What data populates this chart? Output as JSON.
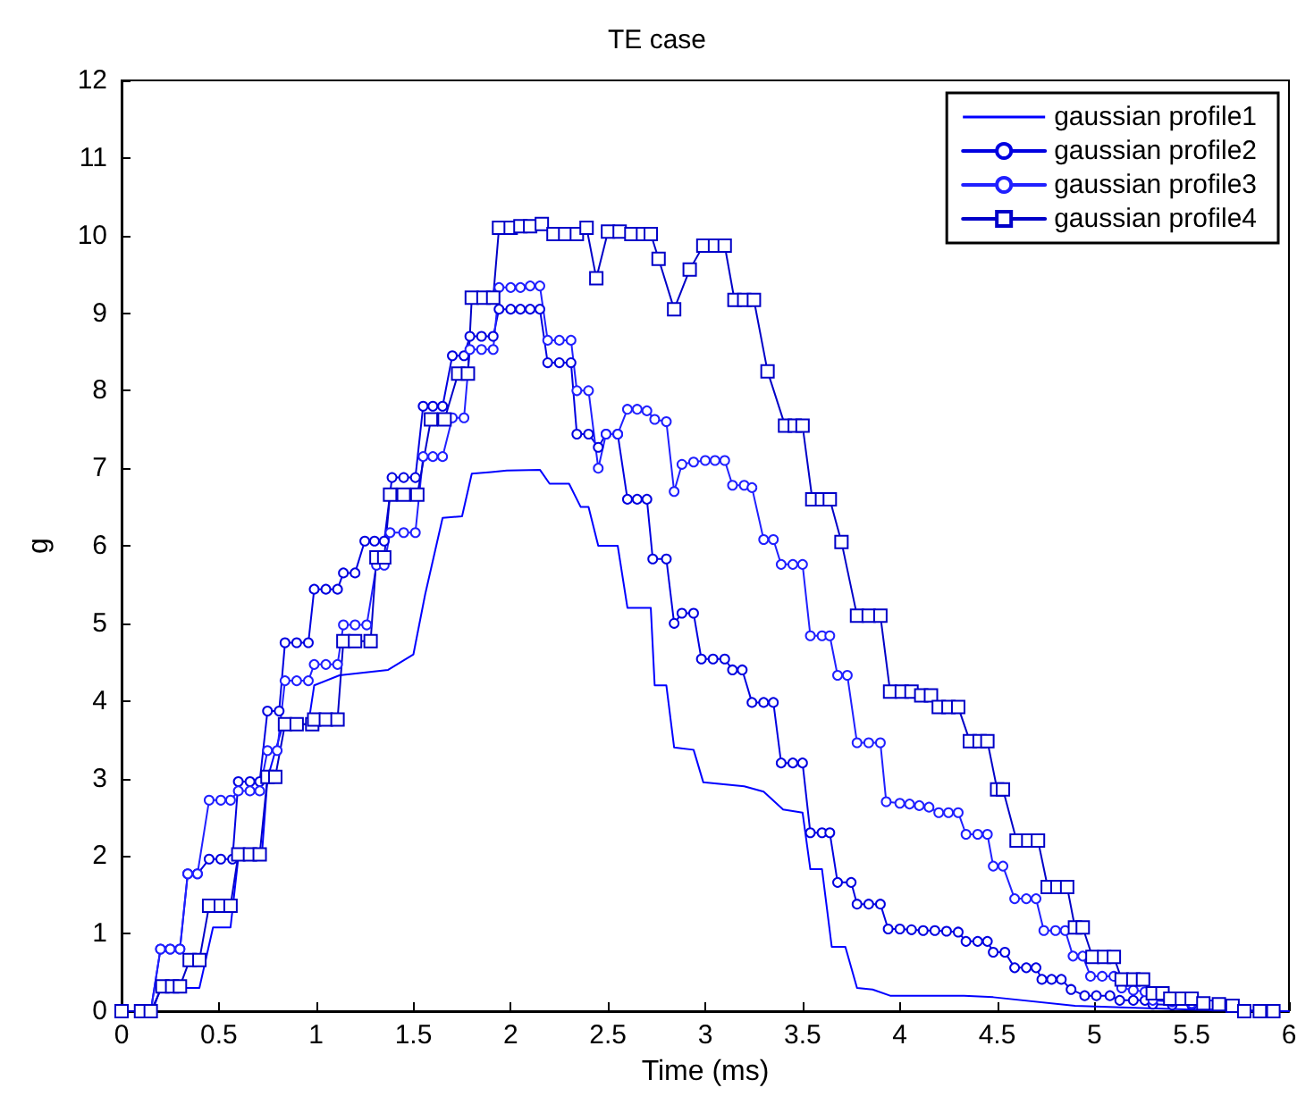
{
  "chart_data": {
    "type": "line",
    "title": "TE case",
    "xlabel": "Time (ms)",
    "ylabel": "g",
    "xlim": [
      0,
      6
    ],
    "xticks": [
      0,
      0.5,
      1,
      1.5,
      2,
      2.5,
      3,
      3.5,
      4,
      4.5,
      5,
      5.5,
      6
    ],
    "ylim": [
      0,
      12
    ],
    "yticks": [
      0,
      1,
      2,
      3,
      4,
      5,
      6,
      7,
      8,
      9,
      10,
      11,
      12
    ],
    "grid": false,
    "legend": "top right",
    "line_style": "solid",
    "series": [
      {
        "name": "gaussian profile1",
        "color": "#0000ff",
        "marker": "none",
        "x": [
          0,
          0.16,
          0.2,
          0.4,
          0.47,
          0.56,
          0.6,
          0.72,
          0.75,
          0.83,
          0.96,
          0.99,
          1.12,
          1.37,
          1.5,
          1.56,
          1.65,
          1.75,
          1.8,
          1.9,
          1.98,
          2.15,
          2.2,
          2.3,
          2.36,
          2.4,
          2.45,
          2.55,
          2.6,
          2.72,
          2.74,
          2.8,
          2.84,
          2.94,
          2.99,
          3.2,
          3.3,
          3.4,
          3.5,
          3.54,
          3.6,
          3.65,
          3.72,
          3.78,
          3.86,
          3.95,
          4.33,
          4.48,
          4.9,
          5.14,
          5.5,
          6
        ],
        "values": [
          0,
          0,
          0.3,
          0.3,
          1.08,
          1.08,
          1.98,
          1.98,
          3,
          3.7,
          3.7,
          4.2,
          4.33,
          4.4,
          4.6,
          5.37,
          6.36,
          6.38,
          6.93,
          6.95,
          6.97,
          6.98,
          6.8,
          6.8,
          6.5,
          6.5,
          6,
          6,
          5.2,
          5.2,
          4.2,
          4.2,
          3.4,
          3.37,
          2.95,
          2.9,
          2.83,
          2.6,
          2.56,
          1.83,
          1.83,
          0.83,
          0.83,
          0.3,
          0.28,
          0.2,
          0.2,
          0.18,
          0.07,
          0.05,
          0.02,
          0
        ]
      },
      {
        "name": "gaussian profile2",
        "color": "#0000e0",
        "marker": "circle",
        "x": [
          0,
          0.1,
          0.15,
          0.2,
          0.25,
          0.3,
          0.34,
          0.39,
          0.45,
          0.51,
          0.57,
          0.6,
          0.66,
          0.71,
          0.75,
          0.81,
          0.84,
          0.9,
          0.96,
          0.99,
          1.05,
          1.11,
          1.14,
          1.2,
          1.25,
          1.3,
          1.35,
          1.39,
          1.45,
          1.51,
          1.55,
          1.6,
          1.65,
          1.7,
          1.76,
          1.79,
          1.85,
          1.91,
          1.94,
          2,
          2.05,
          2.1,
          2.15,
          2.19,
          2.25,
          2.31,
          2.34,
          2.4,
          2.45,
          2.49,
          2.55,
          2.6,
          2.65,
          2.7,
          2.73,
          2.8,
          2.84,
          2.88,
          2.94,
          2.98,
          3.04,
          3.1,
          3.14,
          3.19,
          3.24,
          3.3,
          3.35,
          3.39,
          3.45,
          3.5,
          3.54,
          3.6,
          3.64,
          3.68,
          3.75,
          3.78,
          3.84,
          3.9,
          3.94,
          4,
          4.06,
          4.12,
          4.18,
          4.24,
          4.3,
          4.34,
          4.4,
          4.45,
          4.48,
          4.54,
          4.59,
          4.65,
          4.7,
          4.73,
          4.78,
          4.83,
          4.88,
          4.95,
          5.01,
          5.08,
          5.13,
          5.2,
          5.26,
          5.3,
          5.4,
          5.5,
          5.6,
          5.68,
          5.77,
          5.85,
          5.92
        ],
        "values": [
          0,
          0,
          0,
          0.8,
          0.8,
          0.8,
          1.77,
          1.77,
          1.96,
          1.96,
          1.96,
          2.96,
          2.96,
          2.96,
          3.87,
          3.87,
          4.75,
          4.75,
          4.75,
          5.44,
          5.44,
          5.44,
          5.65,
          5.65,
          6.06,
          6.06,
          6.06,
          6.88,
          6.88,
          6.88,
          7.8,
          7.8,
          7.8,
          8.45,
          8.45,
          8.7,
          8.7,
          8.7,
          9.05,
          9.05,
          9.05,
          9.05,
          9.05,
          8.36,
          8.36,
          8.36,
          7.44,
          7.44,
          7.27,
          7.44,
          7.44,
          6.6,
          6.6,
          6.6,
          5.83,
          5.83,
          5,
          5.13,
          5.13,
          4.54,
          4.54,
          4.54,
          4.4,
          4.4,
          3.98,
          3.98,
          3.98,
          3.2,
          3.2,
          3.2,
          2.3,
          2.3,
          2.3,
          1.66,
          1.66,
          1.38,
          1.38,
          1.38,
          1.06,
          1.06,
          1.05,
          1.04,
          1.04,
          1.03,
          1.02,
          0.9,
          0.9,
          0.9,
          0.76,
          0.76,
          0.56,
          0.56,
          0.56,
          0.41,
          0.41,
          0.41,
          0.28,
          0.2,
          0.2,
          0.2,
          0.14,
          0.14,
          0.14,
          0.09,
          0.08,
          0.08,
          0.07,
          0.07,
          0.01,
          0,
          0
        ]
      },
      {
        "name": "gaussian profile3",
        "color": "#2020ff",
        "marker": "circle",
        "x": [
          0,
          0.1,
          0.15,
          0.2,
          0.25,
          0.3,
          0.34,
          0.39,
          0.45,
          0.51,
          0.56,
          0.6,
          0.66,
          0.71,
          0.75,
          0.8,
          0.84,
          0.9,
          0.96,
          0.99,
          1.05,
          1.11,
          1.14,
          1.2,
          1.26,
          1.31,
          1.35,
          1.38,
          1.45,
          1.51,
          1.55,
          1.6,
          1.65,
          1.7,
          1.76,
          1.79,
          1.85,
          1.91,
          1.94,
          2,
          2.05,
          2.1,
          2.15,
          2.19,
          2.25,
          2.31,
          2.34,
          2.4,
          2.45,
          2.49,
          2.55,
          2.6,
          2.65,
          2.7,
          2.74,
          2.8,
          2.84,
          2.88,
          2.94,
          3,
          3.05,
          3.1,
          3.14,
          3.2,
          3.24,
          3.3,
          3.35,
          3.39,
          3.45,
          3.5,
          3.54,
          3.6,
          3.64,
          3.68,
          3.73,
          3.78,
          3.84,
          3.9,
          3.93,
          4,
          4.05,
          4.1,
          4.15,
          4.2,
          4.25,
          4.3,
          4.34,
          4.4,
          4.45,
          4.48,
          4.53,
          4.59,
          4.65,
          4.7,
          4.74,
          4.8,
          4.85,
          4.89,
          4.94,
          4.98,
          5.04,
          5.1,
          5.14,
          5.2,
          5.26,
          5.3,
          5.4,
          5.5,
          5.6,
          5.68,
          5.77,
          5.85,
          5.92
        ],
        "values": [
          0,
          0,
          0,
          0.8,
          0.8,
          0.8,
          1.77,
          1.77,
          2.72,
          2.72,
          2.72,
          2.84,
          2.84,
          2.84,
          3.36,
          3.36,
          4.26,
          4.26,
          4.26,
          4.47,
          4.47,
          4.47,
          4.98,
          4.98,
          4.98,
          5.75,
          5.75,
          6.17,
          6.17,
          6.17,
          7.15,
          7.15,
          7.15,
          7.65,
          7.65,
          8.53,
          8.53,
          8.53,
          9.33,
          9.33,
          9.33,
          9.35,
          9.35,
          8.65,
          8.65,
          8.65,
          8,
          8,
          7,
          7.44,
          7.44,
          7.76,
          7.76,
          7.74,
          7.63,
          7.6,
          6.7,
          7.05,
          7.08,
          7.1,
          7.1,
          7.1,
          6.78,
          6.78,
          6.75,
          6.08,
          6.08,
          5.76,
          5.76,
          5.76,
          4.84,
          4.84,
          4.84,
          4.33,
          4.33,
          3.46,
          3.46,
          3.46,
          2.7,
          2.68,
          2.67,
          2.65,
          2.63,
          2.56,
          2.56,
          2.56,
          2.28,
          2.28,
          2.28,
          1.87,
          1.87,
          1.45,
          1.45,
          1.45,
          1.04,
          1.04,
          1.04,
          0.71,
          0.71,
          0.45,
          0.45,
          0.45,
          0.3,
          0.27,
          0.25,
          0.14,
          0.12,
          0.1,
          0.08,
          0.07,
          0,
          0,
          0
        ]
      },
      {
        "name": "gaussian profile4",
        "color": "#0000c8",
        "marker": "square",
        "x": [
          0,
          0.1,
          0.15,
          0.21,
          0.26,
          0.3,
          0.35,
          0.4,
          0.45,
          0.51,
          0.56,
          0.6,
          0.66,
          0.71,
          0.75,
          0.79,
          0.84,
          0.9,
          0.98,
          0.99,
          1.05,
          1.11,
          1.14,
          1.2,
          1.28,
          1.31,
          1.35,
          1.38,
          1.45,
          1.52,
          1.59,
          1.66,
          1.73,
          1.78,
          1.8,
          1.86,
          1.91,
          1.94,
          2,
          2.05,
          2.1,
          2.16,
          2.22,
          2.28,
          2.34,
          2.39,
          2.44,
          2.5,
          2.56,
          2.62,
          2.68,
          2.72,
          2.76,
          2.84,
          2.92,
          2.99,
          3.05,
          3.1,
          3.15,
          3.2,
          3.25,
          3.32,
          3.41,
          3.46,
          3.5,
          3.55,
          3.6,
          3.64,
          3.7,
          3.78,
          3.84,
          3.9,
          3.95,
          4.01,
          4.06,
          4.11,
          4.16,
          4.2,
          4.25,
          4.3,
          4.36,
          4.41,
          4.45,
          4.5,
          4.53,
          4.6,
          4.66,
          4.71,
          4.76,
          4.81,
          4.86,
          4.9,
          4.94,
          4.99,
          5.05,
          5.1,
          5.14,
          5.2,
          5.25,
          5.3,
          5.35,
          5.39,
          5.45,
          5.5,
          5.56,
          5.64,
          5.71,
          5.77,
          5.85,
          5.92
        ],
        "values": [
          0,
          0,
          0,
          0.32,
          0.32,
          0.32,
          0.66,
          0.66,
          1.36,
          1.36,
          1.36,
          2.02,
          2.02,
          2.02,
          3.02,
          3.02,
          3.7,
          3.7,
          3.7,
          3.76,
          3.76,
          3.76,
          4.77,
          4.77,
          4.77,
          5.85,
          5.85,
          6.66,
          6.66,
          6.66,
          7.63,
          7.63,
          8.22,
          8.22,
          9.2,
          9.2,
          9.2,
          10.1,
          10.1,
          10.12,
          10.12,
          10.15,
          10.02,
          10.02,
          10.02,
          10.1,
          9.45,
          10.05,
          10.05,
          10.02,
          10.02,
          10.02,
          9.7,
          9.05,
          9.56,
          9.87,
          9.87,
          9.87,
          9.17,
          9.17,
          9.17,
          8.25,
          7.55,
          7.55,
          7.55,
          6.6,
          6.6,
          6.6,
          6.05,
          5.1,
          5.1,
          5.1,
          4.12,
          4.12,
          4.12,
          4.07,
          4.07,
          3.92,
          3.92,
          3.92,
          3.48,
          3.48,
          3.48,
          2.86,
          2.86,
          2.2,
          2.2,
          2.2,
          1.6,
          1.6,
          1.6,
          1.08,
          1.08,
          0.7,
          0.7,
          0.7,
          0.41,
          0.41,
          0.41,
          0.23,
          0.23,
          0.16,
          0.16,
          0.16,
          0.1,
          0.09,
          0.07,
          0,
          0,
          0
        ]
      }
    ]
  }
}
